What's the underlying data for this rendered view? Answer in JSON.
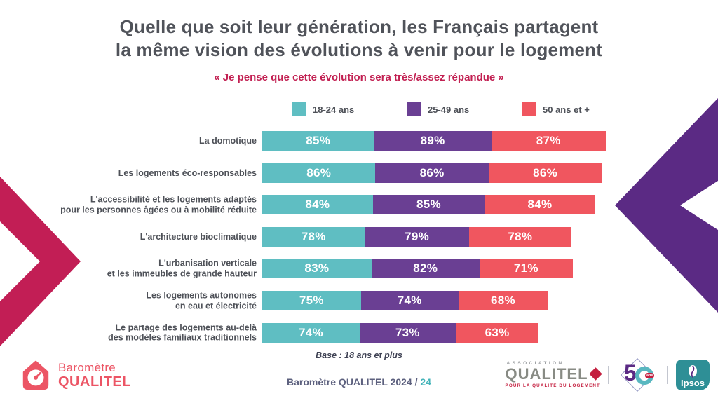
{
  "slide": {
    "title_line1": "Quelle que soit leur génération, les Français partagent",
    "title_line2": "la même vision des évolutions à venir pour le logement",
    "subtitle": "« Je pense que cette évolution sera très/assez répandue »",
    "base_note": "Base : 18 ans et plus",
    "footer_text": "Baromètre QUALITEL 2024 / ",
    "footer_page": "24"
  },
  "chart_data": {
    "type": "bar",
    "orientation": "horizontal_stacked",
    "unit": "%",
    "title": "« Je pense que cette évolution sera très/assez répandue »",
    "legend_position": "top",
    "xlim": [
      0,
      100
    ],
    "categories": [
      "La domotique",
      "Les logements éco-responsables",
      "L'accessibilité et les logements adaptés\npour les personnes âgées ou à mobilité réduite",
      "L'architecture bioclimatique",
      "L'urbanisation verticale\net les immeubles de grande hauteur",
      "Les logements autonomes\nen eau et électricité",
      "Le partage des logements au-delà\ndes modèles familiaux traditionnels"
    ],
    "series": [
      {
        "name": "18-24 ans",
        "color": "#5fbec2",
        "values": [
          85,
          86,
          84,
          78,
          83,
          75,
          74
        ]
      },
      {
        "name": "25-49 ans",
        "color": "#6a3f93",
        "values": [
          89,
          86,
          85,
          79,
          82,
          74,
          73
        ]
      },
      {
        "name": "50 ans et +",
        "color": "#f0565f",
        "values": [
          87,
          86,
          84,
          78,
          71,
          68,
          63
        ]
      }
    ],
    "base_note": "Base : 18 ans et plus"
  },
  "logos": {
    "barometre": {
      "line1": "Baromètre",
      "line2": "QUALITEL"
    },
    "association": {
      "top": "ASSOCIATION",
      "name": "QUALITEL",
      "tagline": "POUR LA QUALITÉ DU LOGEMENT"
    },
    "fifty": {
      "five": "5",
      "ans": "ans"
    },
    "ipsos": {
      "label": "Ipsos"
    }
  },
  "decor": {
    "left_chevron_color": "#c21e55",
    "right_chevron_color": "#5b2a84"
  }
}
